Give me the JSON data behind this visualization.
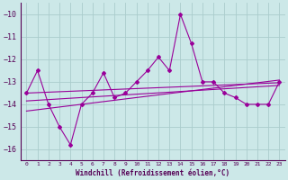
{
  "x": [
    0,
    1,
    2,
    3,
    4,
    5,
    6,
    7,
    8,
    9,
    10,
    11,
    12,
    13,
    14,
    15,
    16,
    17,
    18,
    19,
    20,
    21,
    22,
    23
  ],
  "y_main": [
    -13.5,
    -12.5,
    -14.0,
    -15.0,
    -15.8,
    -14.0,
    -13.5,
    -12.6,
    -13.7,
    -13.5,
    -13.0,
    -12.5,
    -11.9,
    -12.5,
    -10.0,
    -11.3,
    -13.0,
    -13.0,
    -13.5,
    -13.7,
    -14.0,
    -14.0,
    -14.0,
    -13.0
  ],
  "y_line1": [
    -13.5,
    -13.48,
    -13.46,
    -13.44,
    -13.42,
    -13.4,
    -13.38,
    -13.36,
    -13.34,
    -13.32,
    -13.3,
    -13.28,
    -13.26,
    -13.24,
    -13.22,
    -13.2,
    -13.18,
    -13.16,
    -13.14,
    -13.12,
    -13.1,
    -13.08,
    -13.06,
    -13.04
  ],
  "y_line2": [
    -13.85,
    -13.82,
    -13.79,
    -13.76,
    -13.73,
    -13.7,
    -13.67,
    -13.64,
    -13.61,
    -13.58,
    -13.55,
    -13.52,
    -13.49,
    -13.46,
    -13.43,
    -13.4,
    -13.37,
    -13.34,
    -13.31,
    -13.28,
    -13.25,
    -13.22,
    -13.19,
    -13.16
  ],
  "y_line3": [
    -14.3,
    -14.24,
    -14.18,
    -14.12,
    -14.06,
    -14.0,
    -13.94,
    -13.88,
    -13.82,
    -13.76,
    -13.7,
    -13.64,
    -13.58,
    -13.52,
    -13.46,
    -13.4,
    -13.34,
    -13.28,
    -13.22,
    -13.16,
    -13.1,
    -13.04,
    -12.98,
    -12.92
  ],
  "line_color": "#990099",
  "bg_color": "#cce8e8",
  "grid_color": "#aacccc",
  "ylim": [
    -16.5,
    -9.5
  ],
  "yticks": [
    -16,
    -15,
    -14,
    -13,
    -12,
    -11,
    -10
  ],
  "xlabel": "Windchill (Refroidissement éolien,°C)"
}
